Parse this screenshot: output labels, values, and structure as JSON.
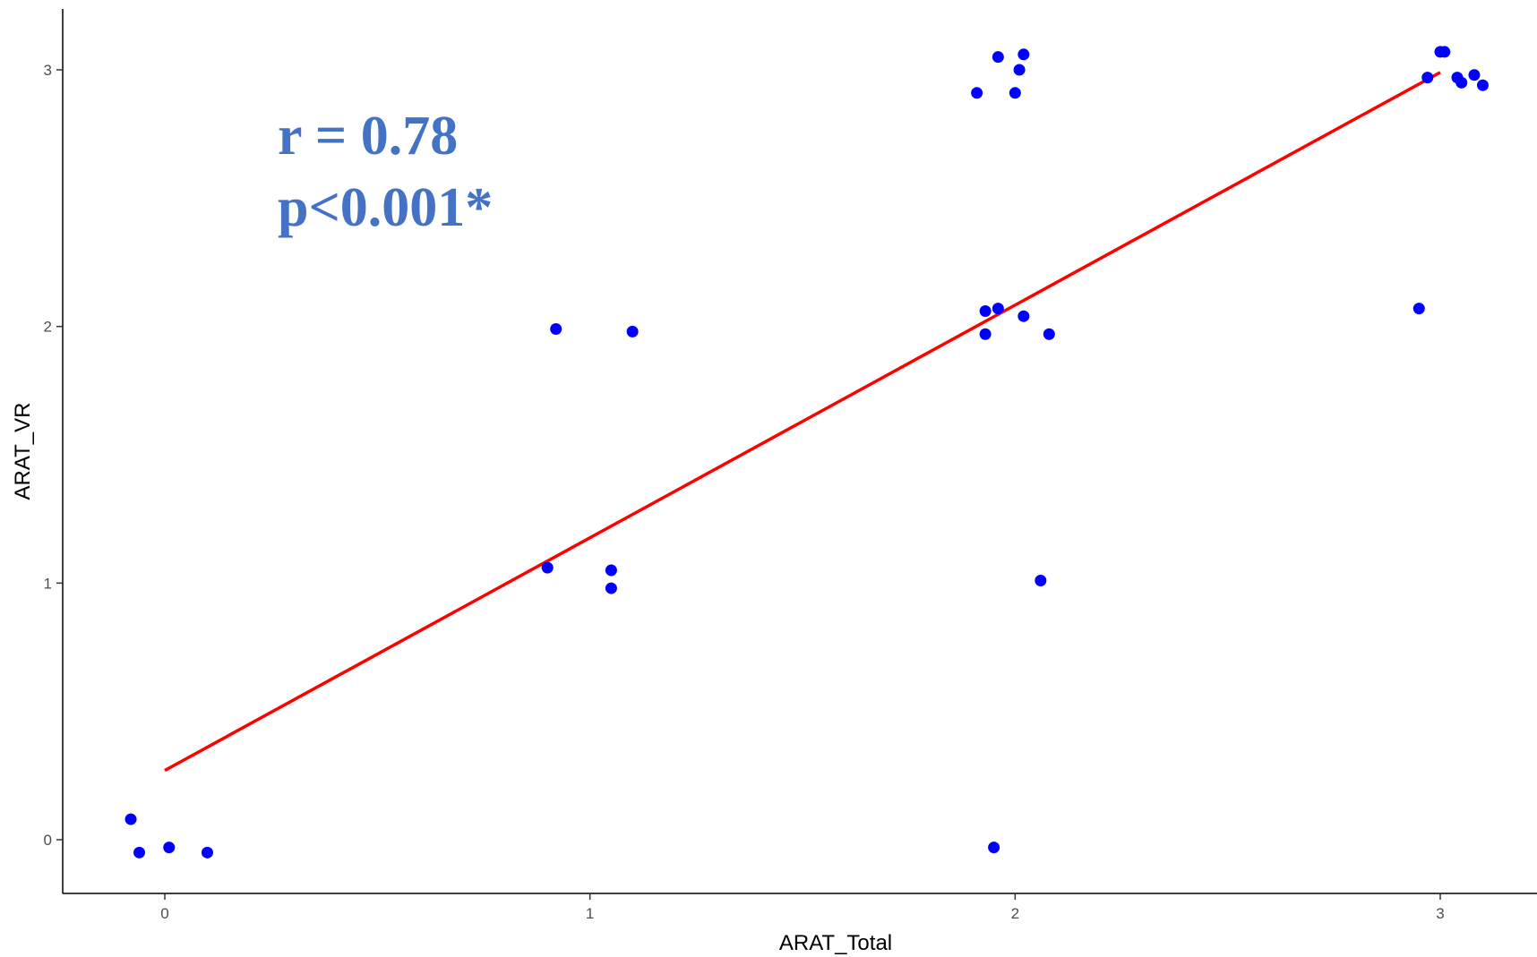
{
  "chart_data": {
    "type": "scatter",
    "title": "",
    "xlabel": "ARAT_Total",
    "ylabel": "ARAT_VR",
    "xlim": [
      -0.25,
      3.25
    ],
    "ylim": [
      -0.2,
      3.2
    ],
    "xticks": [
      "0",
      "1",
      "2",
      "3"
    ],
    "yticks": [
      "0",
      "1",
      "2",
      "3"
    ],
    "grid": false,
    "legend": "none",
    "point_color": "#0000ff",
    "line_color": "#ff0000",
    "annotation_color": "#4472c4",
    "annotation": [
      "r = 0.78",
      "p<0.001*"
    ],
    "points": [
      {
        "x": -0.08,
        "y": 0.08
      },
      {
        "x": -0.06,
        "y": -0.05
      },
      {
        "x": 0.01,
        "y": -0.03
      },
      {
        "x": 0.1,
        "y": -0.05
      },
      {
        "x": 0.9,
        "y": 1.06
      },
      {
        "x": 0.92,
        "y": 1.99
      },
      {
        "x": 1.05,
        "y": 1.05
      },
      {
        "x": 1.05,
        "y": 0.98
      },
      {
        "x": 1.1,
        "y": 1.98
      },
      {
        "x": 1.91,
        "y": 2.91
      },
      {
        "x": 1.96,
        "y": 3.05
      },
      {
        "x": 2.01,
        "y": 3.0
      },
      {
        "x": 2.02,
        "y": 3.06
      },
      {
        "x": 2.0,
        "y": 2.91
      },
      {
        "x": 1.93,
        "y": 2.06
      },
      {
        "x": 1.96,
        "y": 2.07
      },
      {
        "x": 1.93,
        "y": 1.97
      },
      {
        "x": 2.02,
        "y": 2.04
      },
      {
        "x": 2.08,
        "y": 1.97
      },
      {
        "x": 2.06,
        "y": 1.01
      },
      {
        "x": 1.95,
        "y": -0.03
      },
      {
        "x": 2.95,
        "y": 2.07
      },
      {
        "x": 2.97,
        "y": 2.97
      },
      {
        "x": 3.0,
        "y": 3.07
      },
      {
        "x": 3.01,
        "y": 3.07
      },
      {
        "x": 3.04,
        "y": 2.97
      },
      {
        "x": 3.05,
        "y": 2.95
      },
      {
        "x": 3.08,
        "y": 2.98
      },
      {
        "x": 3.1,
        "y": 2.94
      }
    ],
    "fit_line": {
      "x": [
        0,
        3
      ],
      "y": [
        0.27,
        2.99
      ]
    }
  }
}
